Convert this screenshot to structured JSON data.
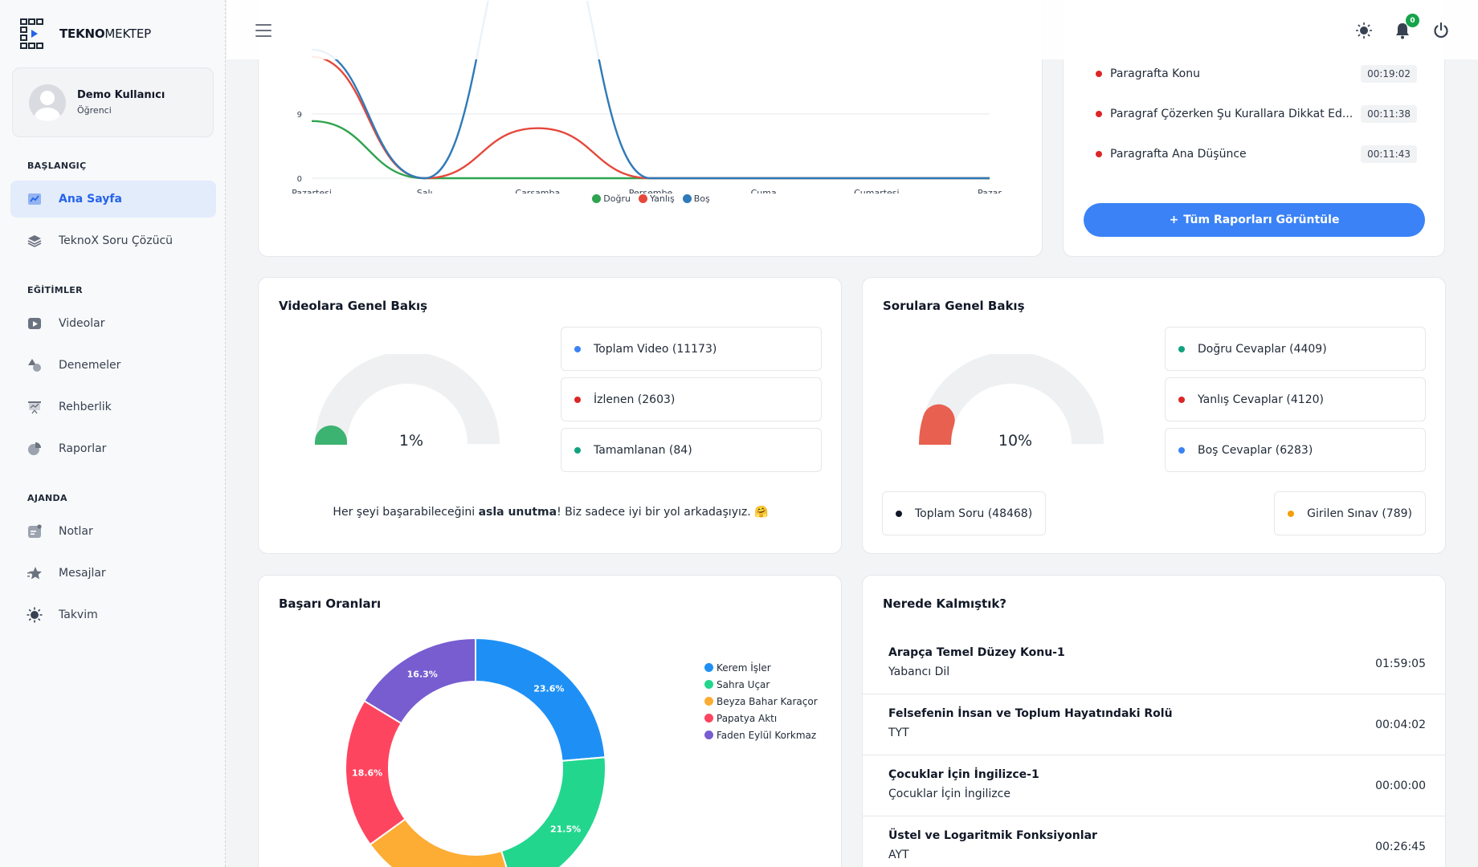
{
  "brand": {
    "logo_bold": "TEKNO",
    "logo_rest": "MEKTEP"
  },
  "user": {
    "name": "Demo Kullanıcı",
    "role": "Öğrenci"
  },
  "sidebar": {
    "sections": [
      {
        "label": "BAŞLANGIÇ"
      },
      {
        "label": "EĞİTİMLER"
      },
      {
        "label": "AJANDA"
      }
    ],
    "items": [
      {
        "label": "Ana Sayfa",
        "icon": "chart-icon",
        "active": true
      },
      {
        "label": "TeknoX Soru Çözücü",
        "icon": "layers-icon"
      },
      {
        "label": "Videolar",
        "icon": "video-icon"
      },
      {
        "label": "Denemeler",
        "icon": "shapes-icon"
      },
      {
        "label": "Rehberlik",
        "icon": "presentation-icon"
      },
      {
        "label": "Raporlar",
        "icon": "pie-icon"
      },
      {
        "label": "Notlar",
        "icon": "note-icon"
      },
      {
        "label": "Mesajlar",
        "icon": "star-icon"
      },
      {
        "label": "Takvim",
        "icon": "sun-icon"
      }
    ]
  },
  "topbar": {
    "notification_count": "0"
  },
  "weekly_chart": {
    "chart_data": {
      "type": "line",
      "categories": [
        "Pazartesi",
        "Salı",
        "Çarşamba",
        "Perşembe",
        "Cuma",
        "Cumartesi",
        "Pazar"
      ],
      "yticks": [
        "0",
        "9"
      ],
      "series": [
        {
          "name": "Doğru",
          "color": "#2ea44f",
          "values": [
            8,
            0,
            0,
            0,
            0,
            0,
            0
          ]
        },
        {
          "name": "Yanlış",
          "color": "#e5483b",
          "values": [
            17,
            0,
            7,
            0,
            0,
            0,
            0
          ]
        },
        {
          "name": "Boş",
          "color": "#2f7ab8",
          "values": [
            18,
            0,
            40,
            0,
            0,
            0,
            0
          ]
        }
      ]
    }
  },
  "reports": {
    "items": [
      {
        "title": "Paragrafta Konu",
        "time": "00:19:02"
      },
      {
        "title": "Paragraf Çözerken Şu Kurallara Dikkat Ed...",
        "time": "00:11:38"
      },
      {
        "title": "Paragrafta Ana Düşünce",
        "time": "00:11:43"
      }
    ],
    "button_label": "Tüm Raporları Görüntüle"
  },
  "videos": {
    "title": "Videolara Genel Bakış",
    "percent_label": "1%",
    "percent": 0.01,
    "stats": [
      {
        "label": "Toplam Video (11173)",
        "color": "#3b82f6"
      },
      {
        "label": "İzlenen (2603)",
        "color": "#dc2626"
      },
      {
        "label": "Tamamlanan (84)",
        "color": "#10a37f"
      }
    ],
    "motto_before": "Her şeyi başarabileceğini ",
    "motto_bold": "asla unutma",
    "motto_after": "! Biz sadece iyi bir yol arkadaşıyız. 🤗"
  },
  "questions": {
    "title": "Sorulara Genel Bakış",
    "percent_label": "10%",
    "percent": 0.1,
    "stats": [
      {
        "label": "Doğru Cevaplar (4409)",
        "color": "#10a37f"
      },
      {
        "label": "Yanlış Cevaplar (4120)",
        "color": "#dc2626"
      },
      {
        "label": "Boş Cevaplar (6283)",
        "color": "#3b82f6"
      }
    ],
    "total_label": "Toplam Soru (48468)",
    "exam_label": "Girilen Sınav (789)"
  },
  "success": {
    "title": "Başarı Oranları",
    "chart_data": {
      "type": "pie",
      "series": [
        {
          "name": "Kerem İşler",
          "value": 23.6,
          "label": "23.6%",
          "color": "#1e90f5"
        },
        {
          "name": "Sahra Uçar",
          "value": 21.5,
          "label": "21.5%",
          "color": "#22d68e"
        },
        {
          "name": "Beyza Bahar Karaçor",
          "value": 19.8,
          "label": "",
          "color": "#fdac34"
        },
        {
          "name": "Papatya Aktı",
          "value": 18.6,
          "label": "18.6%",
          "color": "#fe4560"
        },
        {
          "name": "Faden Eylül Korkmaz",
          "value": 16.3,
          "label": "16.3%",
          "color": "#775dd0"
        }
      ]
    }
  },
  "resume": {
    "title": "Nerede Kalmıştık?",
    "items": [
      {
        "title": "Arapça Temel Düzey Konu-1",
        "subtitle": "Yabancı Dil",
        "time": "01:59:05"
      },
      {
        "title": "Felsefenin İnsan ve Toplum Hayatındaki Rolü",
        "subtitle": "TYT",
        "time": "00:04:02"
      },
      {
        "title": "Çocuklar İçin İngilizce-1",
        "subtitle": "Çocuklar İçin İngilizce",
        "time": "00:00:00"
      },
      {
        "title": "Üstel ve Logaritmik Fonksiyonlar",
        "subtitle": "AYT",
        "time": "00:26:45"
      }
    ]
  }
}
